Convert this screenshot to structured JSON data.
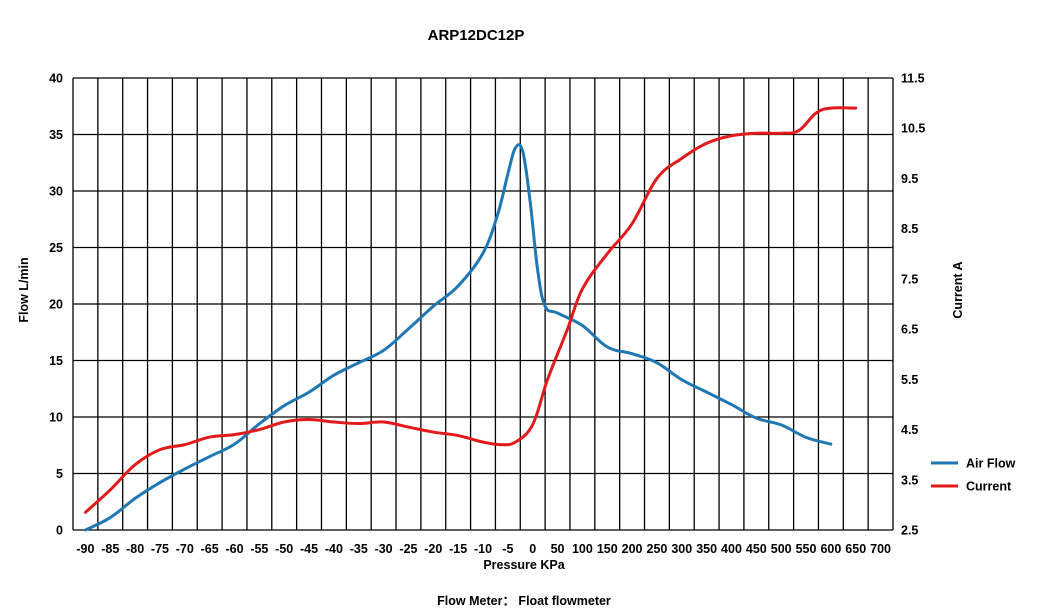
{
  "chart_data": {
    "type": "line",
    "title": "ARP12DC12P",
    "xlabel": "Pressure KPa",
    "ylabel": "Flow  L/min",
    "y2label": "Current  A",
    "footnote": "Flow Meter： Float flowmeter",
    "categories": [
      "-90",
      "-85",
      "-80",
      "-75",
      "-70",
      "-65",
      "-60",
      "-55",
      "-50",
      "-45",
      "-40",
      "-35",
      "-30",
      "-25",
      "-20",
      "-15",
      "-10",
      "-5",
      "0",
      "50",
      "100",
      "150",
      "200",
      "250",
      "300",
      "350",
      "400",
      "450",
      "500",
      "550",
      "600",
      "650",
      "700"
    ],
    "x_scale": "categorical, evenly spaced",
    "ylim": [
      0,
      40
    ],
    "yticks": [
      "0",
      "5",
      "10",
      "15",
      "20",
      "25",
      "30",
      "35",
      "40"
    ],
    "y2lim": [
      2.5,
      11.5
    ],
    "y2ticks": [
      "2.5",
      "3.5",
      "4.5",
      "5.5",
      "6.5",
      "7.5",
      "8.5",
      "9.5",
      "10.5",
      "11.5"
    ],
    "grid": true,
    "legend_position": "right",
    "series": [
      {
        "name": "Air Flow",
        "axis": "left",
        "color": "#1f77b4",
        "points": [
          [
            0.0,
            0.0
          ],
          [
            1.0,
            1.1
          ],
          [
            2.0,
            2.8
          ],
          [
            3.0,
            4.2
          ],
          [
            4.0,
            5.4
          ],
          [
            5.0,
            6.5
          ],
          [
            6.0,
            7.6
          ],
          [
            7.0,
            9.4
          ],
          [
            8.0,
            11.0
          ],
          [
            9.0,
            12.2
          ],
          [
            10.0,
            13.7
          ],
          [
            11.0,
            14.8
          ],
          [
            12.0,
            15.9
          ],
          [
            13.0,
            17.8
          ],
          [
            14.0,
            19.8
          ],
          [
            15.0,
            21.6
          ],
          [
            16.0,
            24.5
          ],
          [
            16.6,
            28.0
          ],
          [
            17.0,
            31.5
          ],
          [
            17.3,
            33.8
          ],
          [
            17.6,
            33.5
          ],
          [
            17.9,
            29.0
          ],
          [
            18.2,
            23.0
          ],
          [
            18.5,
            19.8
          ],
          [
            19.0,
            19.2
          ],
          [
            20.0,
            18.1
          ],
          [
            21.0,
            16.2
          ],
          [
            22.0,
            15.6
          ],
          [
            23.0,
            14.8
          ],
          [
            24.0,
            13.3
          ],
          [
            25.0,
            12.2
          ],
          [
            26.0,
            11.1
          ],
          [
            27.0,
            9.9
          ],
          [
            28.0,
            9.3
          ],
          [
            29.0,
            8.2
          ],
          [
            30.0,
            7.6
          ]
        ]
      },
      {
        "name": "Current",
        "axis": "right",
        "color": "#e31a1c",
        "points": [
          [
            0.0,
            2.85
          ],
          [
            1.0,
            3.3
          ],
          [
            2.0,
            3.8
          ],
          [
            3.0,
            4.1
          ],
          [
            4.0,
            4.2
          ],
          [
            5.0,
            4.35
          ],
          [
            6.0,
            4.4
          ],
          [
            7.0,
            4.5
          ],
          [
            8.0,
            4.65
          ],
          [
            9.0,
            4.7
          ],
          [
            10.0,
            4.65
          ],
          [
            11.0,
            4.62
          ],
          [
            12.0,
            4.65
          ],
          [
            13.0,
            4.55
          ],
          [
            14.0,
            4.45
          ],
          [
            15.0,
            4.38
          ],
          [
            16.0,
            4.25
          ],
          [
            16.7,
            4.2
          ],
          [
            17.3,
            4.25
          ],
          [
            18.0,
            4.6
          ],
          [
            18.6,
            5.5
          ],
          [
            19.4,
            6.5
          ],
          [
            20.0,
            7.3
          ],
          [
            21.0,
            8.0
          ],
          [
            22.0,
            8.6
          ],
          [
            23.0,
            9.5
          ],
          [
            24.0,
            9.9
          ],
          [
            25.0,
            10.2
          ],
          [
            26.0,
            10.35
          ],
          [
            27.0,
            10.4
          ],
          [
            28.0,
            10.4
          ],
          [
            28.7,
            10.45
          ],
          [
            29.4,
            10.8
          ],
          [
            30.0,
            10.9
          ],
          [
            31.0,
            10.9
          ]
        ]
      }
    ]
  }
}
